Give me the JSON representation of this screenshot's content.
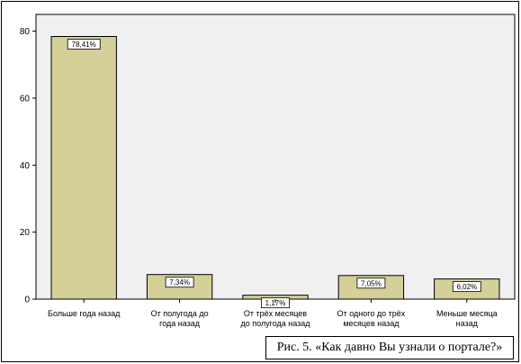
{
  "caption": "Рис. 5. «Как давно Вы узнали о портале?»",
  "colors": {
    "bar_fill": "#d5cf98",
    "bar_stroke": "#000000",
    "plot_bg": "#f0f0f0"
  },
  "chart_data": {
    "type": "bar",
    "categories": [
      [
        "Больше года назад"
      ],
      [
        "От полугода до",
        "года назад"
      ],
      [
        "От трёх месяцев",
        "до полугода назад"
      ],
      [
        "От одного до трёх",
        "месяцев назад"
      ],
      [
        "Меньше месяца",
        "назад"
      ]
    ],
    "values": [
      78.41,
      7.34,
      1.17,
      7.05,
      6.02
    ],
    "data_labels": [
      "78,41%",
      "7,34%",
      "1,17%",
      "7,05%",
      "6,02%"
    ],
    "yticks": [
      0,
      20,
      40,
      60,
      80
    ],
    "ylim": [
      0,
      85
    ],
    "xlabel": "",
    "ylabel": "",
    "grid": false
  }
}
